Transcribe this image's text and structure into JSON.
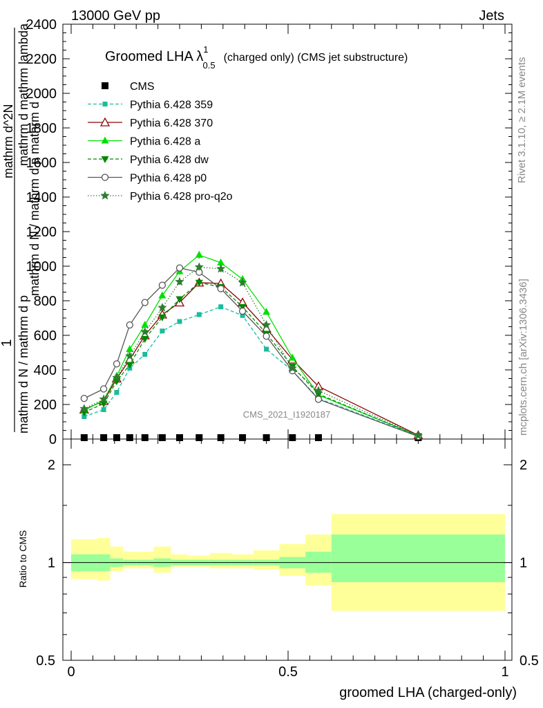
{
  "header": {
    "left": "13000 GeV pp",
    "right": "Jets"
  },
  "side": {
    "rivet": "Rivet 3.1.10, ≥ 2.1M events",
    "mcplots": "mcplots.cern.ch [arXiv:1306.3436]"
  },
  "watermark": "CMS_2021_I1920187",
  "chart_data": {
    "type": "line",
    "title": "Groomed LHA λ",
    "title_sup": "1",
    "title_sub": "0.5",
    "title_suffix": "(charged only) (CMS jet substructure)",
    "ylabel_parts": [
      "1",
      "mathrm d N / mathrm d p",
      "mathrm d N / mathrm d p mathrm d",
      "mathrm d^2N",
      "mathrm d mathrm lambda"
    ],
    "xlabel": "groomed LHA (charged-only)",
    "ratio_ylabel": "Ratio to CMS",
    "xlim": [
      0,
      1
    ],
    "ylim": [
      0,
      2400
    ],
    "ratio_ylim": [
      0.5,
      2.4
    ],
    "xticks": [
      "0",
      "0.5",
      "1"
    ],
    "yticks": [
      "0",
      "200",
      "400",
      "600",
      "800",
      "1000",
      "1200",
      "1400",
      "1600",
      "1800",
      "2000",
      "2200",
      "2400"
    ],
    "ratio_yticks": [
      "0.5",
      "1",
      "2"
    ],
    "x": [
      0.03,
      0.075,
      0.105,
      0.135,
      0.17,
      0.21,
      0.25,
      0.295,
      0.345,
      0.395,
      0.45,
      0.51,
      0.57,
      0.8
    ],
    "bin_edges": [
      0.0,
      0.06,
      0.09,
      0.12,
      0.15,
      0.19,
      0.23,
      0.27,
      0.32,
      0.37,
      0.42,
      0.48,
      0.54,
      0.6,
      1.0
    ],
    "series": [
      {
        "name": "CMS",
        "color": "#000000",
        "values": [
          5,
          5,
          5,
          5,
          5,
          5,
          5,
          5,
          5,
          5,
          5,
          5,
          5,
          5
        ]
      },
      {
        "name": "Pythia 6.428 359",
        "color": "#1abc9c",
        "values": [
          130,
          170,
          270,
          410,
          490,
          625,
          680,
          720,
          765,
          715,
          520,
          395,
          235,
          18
        ]
      },
      {
        "name": "Pythia 6.428 370",
        "color": "#8b0000",
        "values": [
          170,
          220,
          350,
          460,
          600,
          720,
          790,
          905,
          900,
          790,
          640,
          460,
          305,
          22
        ]
      },
      {
        "name": "Pythia 6.428 a",
        "color": "#00e000",
        "values": [
          165,
          225,
          365,
          520,
          660,
          830,
          970,
          1065,
          1020,
          925,
          735,
          470,
          255,
          20
        ]
      },
      {
        "name": "Pythia 6.428 dw",
        "color": "#008800",
        "values": [
          155,
          205,
          335,
          430,
          580,
          705,
          810,
          905,
          880,
          765,
          610,
          420,
          260,
          18
        ]
      },
      {
        "name": "Pythia 6.428 p0",
        "color": "#555555",
        "values": [
          235,
          290,
          435,
          660,
          790,
          890,
          990,
          965,
          870,
          740,
          595,
          395,
          230,
          15
        ]
      },
      {
        "name": "Pythia 6.428 pro-q2o",
        "color": "#2e7d32",
        "values": [
          175,
          230,
          355,
          480,
          620,
          760,
          910,
          995,
          985,
          905,
          660,
          410,
          280,
          20
        ]
      }
    ],
    "ratio_band_inner": [
      [
        0.94,
        1.06
      ],
      [
        0.94,
        1.06
      ],
      [
        0.97,
        1.03
      ],
      [
        0.98,
        1.02
      ],
      [
        0.98,
        1.02
      ],
      [
        0.97,
        1.03
      ],
      [
        0.98,
        1.02
      ],
      [
        0.98,
        1.02
      ],
      [
        0.98,
        1.02
      ],
      [
        0.98,
        1.02
      ],
      [
        0.98,
        1.02
      ],
      [
        0.96,
        1.04
      ],
      [
        0.93,
        1.08
      ],
      [
        0.87,
        1.22
      ]
    ],
    "ratio_band_outer": [
      [
        0.89,
        1.18
      ],
      [
        0.88,
        1.19
      ],
      [
        0.94,
        1.12
      ],
      [
        0.96,
        1.08
      ],
      [
        0.96,
        1.08
      ],
      [
        0.93,
        1.12
      ],
      [
        0.97,
        1.06
      ],
      [
        0.97,
        1.05
      ],
      [
        0.96,
        1.07
      ],
      [
        0.96,
        1.06
      ],
      [
        0.95,
        1.09
      ],
      [
        0.91,
        1.14
      ],
      [
        0.85,
        1.22
      ],
      [
        0.71,
        1.41
      ]
    ]
  }
}
